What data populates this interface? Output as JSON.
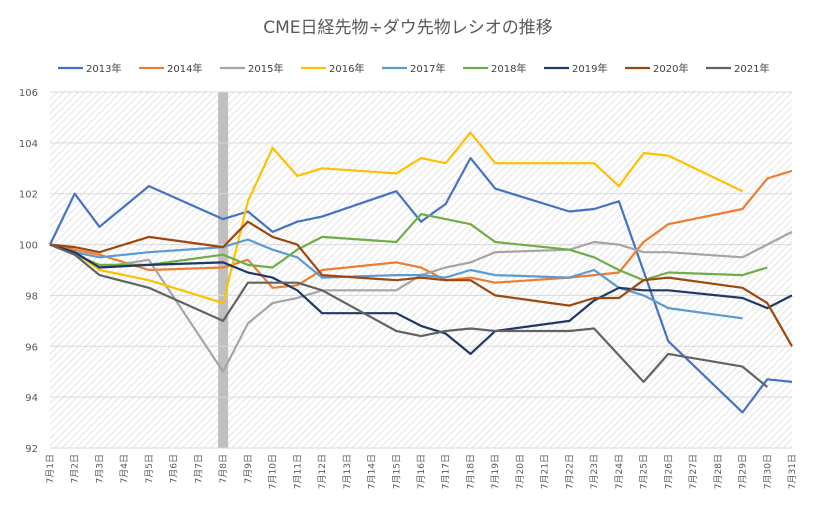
{
  "chart_data": {
    "type": "line",
    "title": "CME日経先物÷ダウ先物レシオの推移",
    "xlabel": "",
    "ylabel": "",
    "ylim": [
      92,
      106
    ],
    "yticks": [
      92,
      94,
      96,
      98,
      100,
      102,
      104,
      106
    ],
    "grid": true,
    "legend_position": "top",
    "background_pattern": "diagonal-hatch",
    "highlight_category": "7月8日",
    "highlight_color": "#bfbfbf",
    "categories": [
      "7月1日",
      "7月2日",
      "7月3日",
      "7月4日",
      "7月5日",
      "7月6日",
      "7月7日",
      "7月8日",
      "7月9日",
      "7月10日",
      "7月11日",
      "7月12日",
      "7月13日",
      "7月14日",
      "7月15日",
      "7月16日",
      "7月17日",
      "7月18日",
      "7月19日",
      "7月20日",
      "7月21日",
      "7月22日",
      "7月23日",
      "7月24日",
      "7月25日",
      "7月26日",
      "7月27日",
      "7月28日",
      "7月29日",
      "7月30日",
      "7月31日"
    ],
    "series": [
      {
        "name": "2013年",
        "color": "#4472c4",
        "values": [
          100,
          102,
          100.7,
          null,
          102.3,
          null,
          null,
          101,
          101.3,
          100.5,
          100.9,
          101.1,
          null,
          null,
          102.1,
          100.9,
          101.6,
          103.4,
          102.2,
          null,
          null,
          101.3,
          101.4,
          101.7,
          null,
          96.2,
          null,
          null,
          93.4,
          94.7,
          94.6
        ]
      },
      {
        "name": "2014年",
        "color": "#ed7d31",
        "values": [
          100,
          99.8,
          99.6,
          null,
          99,
          null,
          null,
          99.1,
          99.4,
          98.3,
          98.4,
          99,
          null,
          null,
          99.3,
          99.1,
          98.6,
          98.7,
          98.5,
          null,
          null,
          98.7,
          98.8,
          98.9,
          100.1,
          100.8,
          null,
          null,
          101.4,
          102.6,
          102.9
        ]
      },
      {
        "name": "2015年",
        "color": "#a5a5a5",
        "values": [
          100,
          99.7,
          99.1,
          null,
          99.4,
          null,
          null,
          95,
          96.9,
          97.7,
          97.9,
          98.2,
          98.2,
          null,
          98.2,
          98.8,
          99.1,
          99.3,
          99.7,
          null,
          null,
          99.8,
          100.1,
          100,
          99.7,
          99.7,
          null,
          null,
          99.5,
          null,
          100.5
        ]
      },
      {
        "name": "2016年",
        "color": "#ffc000",
        "values": [
          100,
          99.7,
          99,
          null,
          98.6,
          null,
          null,
          97.7,
          101.7,
          103.8,
          102.7,
          103,
          null,
          null,
          102.8,
          103.4,
          103.2,
          104.4,
          103.2,
          null,
          null,
          103.2,
          103.2,
          102.3,
          103.6,
          103.5,
          null,
          null,
          102.1,
          null,
          null
        ]
      },
      {
        "name": "2017年",
        "color": "#5b9bd5",
        "values": [
          100,
          99.7,
          99.5,
          null,
          99.7,
          null,
          null,
          99.9,
          100.2,
          99.8,
          99.5,
          98.7,
          null,
          null,
          98.8,
          98.8,
          98.7,
          99,
          98.8,
          null,
          null,
          98.7,
          99,
          98.3,
          98,
          97.5,
          null,
          null,
          97.1,
          null,
          null
        ]
      },
      {
        "name": "2018年",
        "color": "#70ad47",
        "values": [
          100,
          99.6,
          99.2,
          null,
          99.2,
          null,
          null,
          99.6,
          99.2,
          99.1,
          99.8,
          100.3,
          null,
          null,
          100.1,
          101.2,
          101,
          100.8,
          100.1,
          null,
          null,
          99.8,
          99.5,
          99,
          98.6,
          98.9,
          null,
          null,
          98.8,
          99.1,
          null
        ]
      },
      {
        "name": "2019年",
        "color": "#203864",
        "values": [
          100,
          99.7,
          99.1,
          null,
          99.2,
          null,
          null,
          99.3,
          98.9,
          98.7,
          98.2,
          97.3,
          null,
          null,
          97.3,
          96.8,
          96.5,
          95.7,
          96.6,
          null,
          null,
          97,
          97.8,
          98.3,
          98.2,
          98.2,
          null,
          null,
          97.9,
          97.5,
          98
        ]
      },
      {
        "name": "2020年",
        "color": "#9e480e",
        "values": [
          100,
          99.9,
          99.7,
          null,
          100.3,
          null,
          null,
          99.9,
          100.9,
          100.3,
          100,
          98.8,
          null,
          null,
          98.6,
          98.7,
          98.6,
          98.6,
          98,
          null,
          null,
          97.6,
          97.9,
          97.9,
          98.6,
          98.7,
          null,
          null,
          98.3,
          97.7,
          96
        ]
      },
      {
        "name": "2021年",
        "color": "#636363",
        "values": [
          100,
          99.6,
          98.8,
          null,
          98.3,
          null,
          null,
          97,
          98.5,
          98.5,
          98.5,
          98.2,
          null,
          null,
          96.6,
          96.4,
          96.6,
          96.7,
          96.6,
          null,
          null,
          96.6,
          96.7,
          null,
          94.6,
          95.7,
          null,
          null,
          95.2,
          94.4,
          null
        ]
      }
    ]
  }
}
